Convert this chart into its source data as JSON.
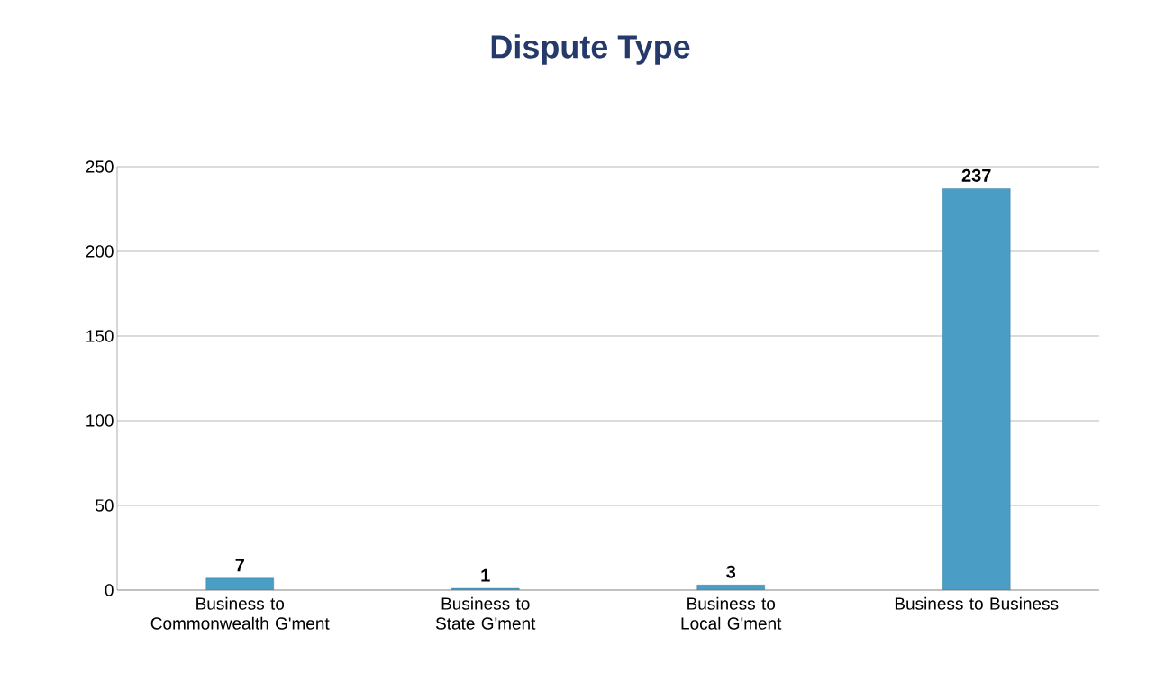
{
  "chart_data": {
    "type": "bar",
    "title": "Dispute Type",
    "categories": [
      "Business to Commonwealth G'ment",
      "Business to State G'ment",
      "Business to Local G'ment",
      "Business to Business"
    ],
    "values": [
      7,
      1,
      3,
      237
    ],
    "color": "#4a9ec6",
    "ylim": [
      0,
      250
    ],
    "yticks": [
      0,
      50,
      100,
      150,
      200,
      250
    ],
    "grid": "y",
    "data_labels": true
  }
}
